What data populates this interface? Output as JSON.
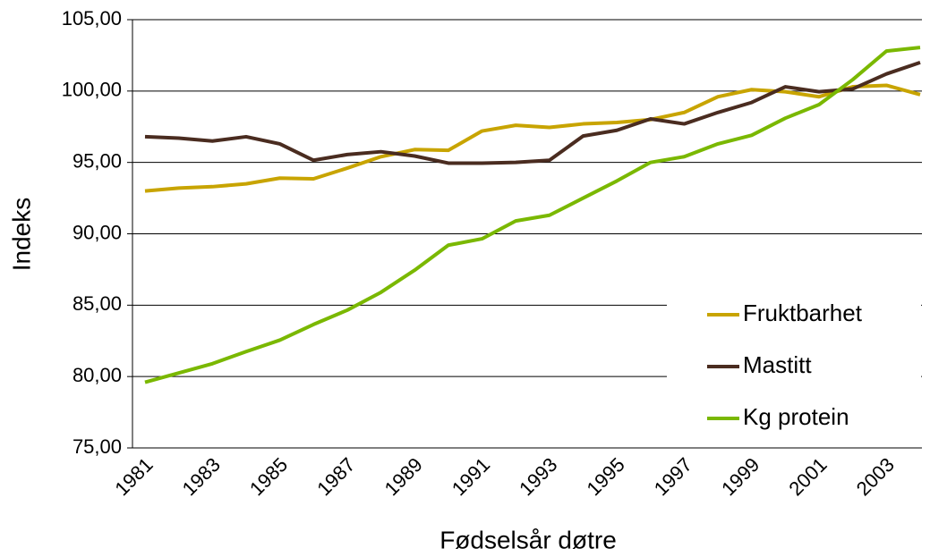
{
  "chart_data": {
    "type": "line",
    "xlabel": "Fødselsår døtre",
    "ylabel": "Indeks",
    "categories": [
      "1981",
      null,
      "1983",
      null,
      "1985",
      null,
      "1987",
      null,
      "1989",
      null,
      "1991",
      null,
      "1993",
      null,
      "1995",
      null,
      "1997",
      null,
      "1999",
      null,
      "2001",
      null,
      "2003",
      null
    ],
    "series": [
      {
        "name": "Fruktbarhet",
        "color": "#c8a400",
        "values": [
          93.0,
          93.2,
          93.3,
          93.5,
          93.9,
          93.85,
          94.6,
          95.4,
          95.9,
          95.85,
          97.2,
          97.6,
          97.45,
          97.7,
          97.8,
          98.0,
          98.5,
          99.6,
          100.1,
          99.95,
          99.6,
          100.3,
          100.4,
          99.75
        ]
      },
      {
        "name": "Mastitt",
        "color": "#4a2c20",
        "values": [
          96.8,
          96.7,
          96.5,
          96.8,
          96.3,
          95.15,
          95.55,
          95.75,
          95.45,
          94.95,
          94.95,
          95.0,
          95.15,
          96.85,
          97.25,
          98.05,
          97.7,
          98.5,
          99.2,
          100.3,
          99.95,
          100.15,
          101.2,
          102.0
        ]
      },
      {
        "name": "Kg protein",
        "color": "#7ab800",
        "values": [
          79.6,
          80.25,
          80.9,
          81.75,
          82.55,
          83.65,
          84.65,
          85.9,
          87.45,
          89.2,
          89.65,
          90.9,
          91.3,
          92.5,
          93.7,
          95.0,
          95.4,
          96.3,
          96.9,
          98.1,
          99.05,
          100.8,
          102.8,
          103.05
        ]
      }
    ],
    "ylim": [
      75,
      105
    ],
    "yticks": [
      {
        "value": 75,
        "label": "75,00"
      },
      {
        "value": 80,
        "label": "80,00"
      },
      {
        "value": 85,
        "label": "85,00"
      },
      {
        "value": 90,
        "label": "90,00"
      },
      {
        "value": 95,
        "label": "95,00"
      },
      {
        "value": 100,
        "label": "100,00"
      },
      {
        "value": 105,
        "label": "105,00"
      }
    ],
    "grid": true,
    "legend": "right"
  }
}
